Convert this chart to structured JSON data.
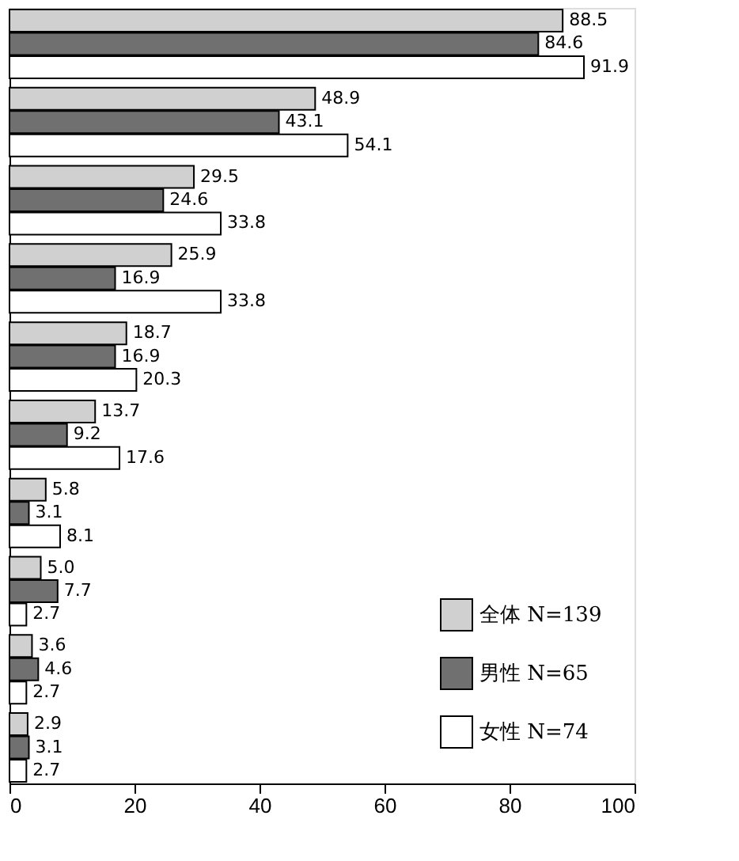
{
  "chart_data": {
    "type": "bar",
    "orientation": "horizontal",
    "categories": [
      null,
      null,
      null,
      null,
      null,
      null,
      null,
      null,
      null,
      null
    ],
    "series": [
      {
        "name": "全体 N=139",
        "color": "#d0d0d0",
        "values": [
          88.5,
          48.9,
          29.5,
          25.9,
          18.7,
          13.7,
          5.8,
          5.0,
          3.6,
          2.9
        ],
        "value_labels": [
          "88.5",
          "48.9",
          "29.5",
          "25.9",
          "18.7",
          "13.7",
          "5.8",
          "5.0",
          "3.6",
          "2.9"
        ]
      },
      {
        "name": "男性 N=65",
        "color": "#707070",
        "values": [
          84.6,
          43.1,
          24.6,
          16.9,
          16.9,
          9.2,
          3.1,
          7.7,
          4.6,
          3.1
        ],
        "value_labels": [
          "84.6",
          "43.1",
          "24.6",
          "16.9",
          "16.9",
          "9.2",
          "3.1",
          "7.7",
          "4.6",
          "3.1"
        ]
      },
      {
        "name": "女性 N=74",
        "color": "#ffffff",
        "values": [
          91.9,
          54.1,
          33.8,
          33.8,
          20.3,
          17.6,
          8.1,
          2.7,
          2.7,
          2.7
        ],
        "value_labels": [
          "91.9",
          "54.1",
          "33.8",
          "33.8",
          "20.3",
          "17.6",
          "8.1",
          "2.7",
          "2.7",
          "2.7"
        ]
      }
    ],
    "xlim": [
      0,
      100
    ],
    "xticks": [
      0,
      20,
      40,
      60,
      80,
      100
    ],
    "tick_labels": "x",
    "legend": "bottom right",
    "grid": false
  }
}
